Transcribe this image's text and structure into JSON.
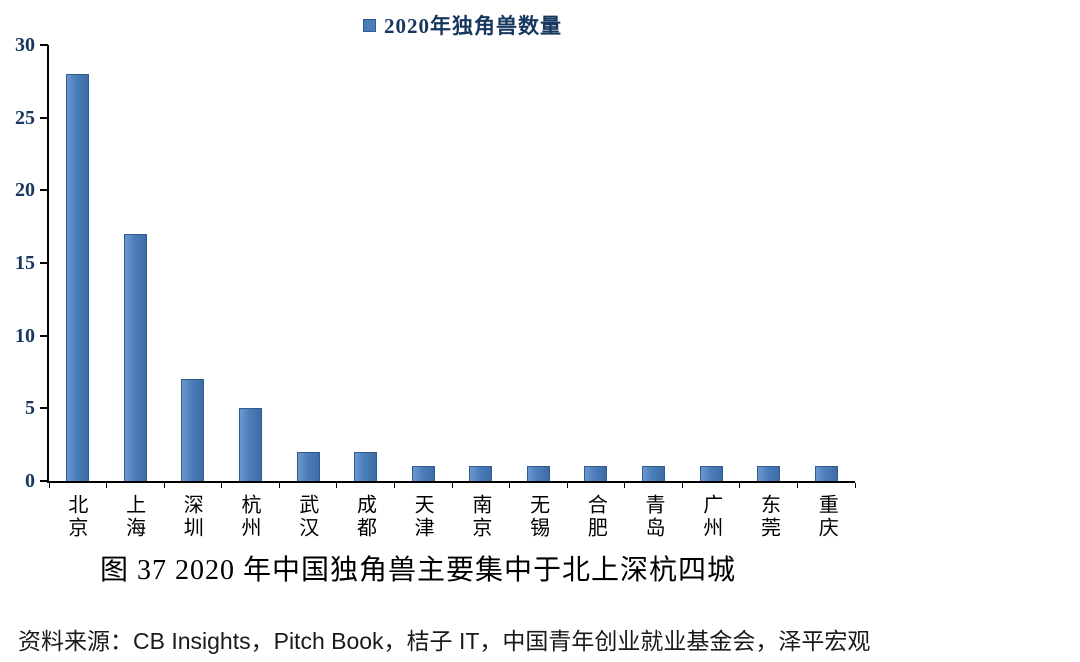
{
  "chart_data": {
    "type": "bar",
    "title": "",
    "legend": [
      "2020年独角兽数量"
    ],
    "categories": [
      "北京",
      "上海",
      "深圳",
      "杭州",
      "武汉",
      "成都",
      "天津",
      "南京",
      "无锡",
      "合肥",
      "青岛",
      "广州",
      "东莞",
      "重庆"
    ],
    "values": [
      28,
      17,
      7,
      5,
      2,
      2,
      1,
      1,
      1,
      1,
      1,
      1,
      1,
      1
    ],
    "xlabel": "",
    "ylabel": "",
    "ylim": [
      0,
      30
    ],
    "ytick_step": 5,
    "grid": false,
    "legend_position": "top-center",
    "bar_color": "#4A7EBB",
    "bar_border_color": "#2F5B8F",
    "axis_color": "#000000",
    "tick_label_color": "#17375E"
  },
  "caption": "图 37 2020 年中国独角兽主要集中于北上深杭四城",
  "source": "资料来源：CB Insights，Pitch Book，桔子 IT，中国青年创业就业基金会，泽平宏观"
}
